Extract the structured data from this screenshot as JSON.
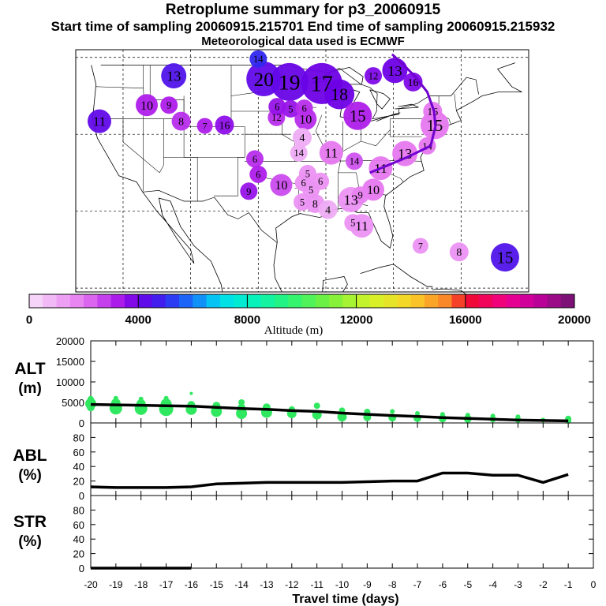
{
  "header": {
    "title": "Retroplume summary for p3_20060915",
    "sampling": "Start time of sampling 20060915.215701     End time of sampling 20060915.215932",
    "met": "Meteorological data used is ECMWF"
  },
  "colorbar": {
    "label": "Altitude (m)",
    "ticks": [
      "0",
      "4000",
      "8000",
      "12000",
      "16000",
      "20000"
    ]
  },
  "chart_data": [
    {
      "type": "scatter",
      "name": "map-plume-centroids",
      "title": "Retroplume centroid positions by day (color = altitude, size = plume extent)",
      "points": [
        {
          "label": "20",
          "lon": -99.2,
          "lat": 47.2,
          "alt": 4200
        },
        {
          "label": "19",
          "lon": -95.4,
          "lat": 46.8,
          "alt": 4100
        },
        {
          "label": "17",
          "lon": -90.6,
          "lat": 46.6,
          "alt": 4000
        },
        {
          "label": "18",
          "lon": -88.0,
          "lat": 45.2,
          "alt": 4000
        },
        {
          "label": "14",
          "lon": -100.0,
          "lat": 49.8,
          "alt": 5000
        },
        {
          "label": "13",
          "lon": -112.5,
          "lat": 47.6,
          "alt": 4500
        },
        {
          "label": "15",
          "lon": -85.3,
          "lat": 42.4,
          "alt": 3200
        },
        {
          "label": "12",
          "lon": -97.3,
          "lat": 42.2,
          "alt": 3000
        },
        {
          "label": "6",
          "lon": -97.2,
          "lat": 43.6,
          "alt": 3500
        },
        {
          "label": "5",
          "lon": -95.2,
          "lat": 43.3,
          "alt": 3500
        },
        {
          "label": "6",
          "lon": -93.2,
          "lat": 43.4,
          "alt": 3000
        },
        {
          "label": "10",
          "lon": -93.0,
          "lat": 42.0,
          "alt": 3000
        },
        {
          "label": "16",
          "lon": -105.0,
          "lat": 41.2,
          "alt": 3600
        },
        {
          "label": "7",
          "lon": -107.9,
          "lat": 41.1,
          "alt": 3200
        },
        {
          "label": "8",
          "lon": -111.4,
          "lat": 41.7,
          "alt": 3000
        },
        {
          "label": "10",
          "lon": -116.5,
          "lat": 43.8,
          "alt": 3200
        },
        {
          "label": "9",
          "lon": -113.2,
          "lat": 43.8,
          "alt": 3200
        },
        {
          "label": "11",
          "lon": -123.5,
          "lat": 41.7,
          "alt": 4200
        },
        {
          "label": "4",
          "lon": -93.5,
          "lat": 39.6,
          "alt": 1000
        },
        {
          "label": "11",
          "lon": -89.2,
          "lat": 37.6,
          "alt": 2000
        },
        {
          "label": "14",
          "lon": -85.8,
          "lat": 36.5,
          "alt": 2500
        },
        {
          "label": "14",
          "lon": -94.0,
          "lat": 37.6,
          "alt": 1000
        },
        {
          "label": "6",
          "lon": -100.5,
          "lat": 36.8,
          "alt": 3000
        },
        {
          "label": "6",
          "lon": -100.0,
          "lat": 34.8,
          "alt": 3200
        },
        {
          "label": "10",
          "lon": -96.6,
          "lat": 33.4,
          "alt": 2600
        },
        {
          "label": "9",
          "lon": -101.4,
          "lat": 32.6,
          "alt": 3500
        },
        {
          "label": "6",
          "lon": -93.3,
          "lat": 33.7,
          "alt": 1500
        },
        {
          "label": "5",
          "lon": -92.7,
          "lat": 34.9,
          "alt": 1500
        },
        {
          "label": "6",
          "lon": -90.8,
          "lat": 33.9,
          "alt": 1500
        },
        {
          "label": "5",
          "lon": -92.2,
          "lat": 32.8,
          "alt": 1500
        },
        {
          "label": "5",
          "lon": -93.5,
          "lat": 31.2,
          "alt": 1500
        },
        {
          "label": "8",
          "lon": -91.6,
          "lat": 31.0,
          "alt": 1500
        },
        {
          "label": "4",
          "lon": -89.7,
          "lat": 30.2,
          "alt": 1000
        },
        {
          "label": "13",
          "lon": -86.3,
          "lat": 31.5,
          "alt": 1500
        },
        {
          "label": "9",
          "lon": -84.9,
          "lat": 32.1,
          "alt": 1800
        },
        {
          "label": "10",
          "lon": -83.0,
          "lat": 32.8,
          "alt": 2000
        },
        {
          "label": "5",
          "lon": -86.0,
          "lat": 28.5,
          "alt": 1500
        },
        {
          "label": "11",
          "lon": -84.7,
          "lat": 28.1,
          "alt": 1500
        },
        {
          "label": "7",
          "lon": -76.0,
          "lat": 25.5,
          "alt": 1500
        },
        {
          "label": "8",
          "lon": -70.3,
          "lat": 24.7,
          "alt": 1500
        },
        {
          "label": "15",
          "lon": -63.5,
          "lat": 24.0,
          "alt": 4500
        },
        {
          "label": "16",
          "lon": -77.1,
          "lat": 46.8,
          "alt": 3800
        },
        {
          "label": "13",
          "lon": -79.8,
          "lat": 48.3,
          "alt": 4000
        },
        {
          "label": "12",
          "lon": -83.0,
          "lat": 47.6,
          "alt": 3800
        },
        {
          "label": "16",
          "lon": -74.2,
          "lat": 43.0,
          "alt": 2000
        },
        {
          "label": "15",
          "lon": -73.9,
          "lat": 41.2,
          "alt": 2000
        },
        {
          "label": "14",
          "lon": -75.0,
          "lat": 38.5,
          "alt": 2000
        },
        {
          "label": "13",
          "lon": -78.3,
          "lat": 37.5,
          "alt": 2000
        },
        {
          "label": "11",
          "lon": -81.9,
          "lat": 35.6,
          "alt": 2000
        }
      ],
      "path_color": "#7000d0",
      "path": [
        [
          -83.5,
          35.0
        ],
        [
          -78.0,
          37.0
        ],
        [
          -74.5,
          38.5
        ],
        [
          -73.8,
          41.0
        ],
        [
          -74.0,
          43.0
        ],
        [
          -75.0,
          45.5
        ],
        [
          -76.8,
          47.5
        ],
        [
          -78.7,
          49.2
        ],
        [
          -80.2,
          50.4
        ]
      ]
    },
    {
      "type": "scatter",
      "name": "alt-panel",
      "title": "ALT (m)",
      "xlim": [
        -20,
        0
      ],
      "ylim": [
        0,
        20000
      ],
      "yticks": [
        "0",
        "5000",
        "10000",
        "15000",
        "20000"
      ],
      "line_x": [
        -20,
        -19,
        -18,
        -17,
        -16,
        -15,
        -14,
        -13,
        -12,
        -11,
        -10,
        -9,
        -8,
        -7,
        -6,
        -5,
        -4,
        -3,
        -2,
        -1
      ],
      "line_y": [
        4500,
        4400,
        4300,
        4200,
        4100,
        3800,
        3500,
        3300,
        3000,
        2800,
        2400,
        2100,
        1800,
        1600,
        1300,
        1100,
        900,
        700,
        600,
        500
      ],
      "dots": [
        {
          "x": -20,
          "y": 5800,
          "s": 4
        },
        {
          "x": -20,
          "y": 4700,
          "s": 7
        },
        {
          "x": -20,
          "y": 3800,
          "s": 5
        },
        {
          "x": -19,
          "y": 6000,
          "s": 3
        },
        {
          "x": -19,
          "y": 4800,
          "s": 6
        },
        {
          "x": -19,
          "y": 3600,
          "s": 8
        },
        {
          "x": -18,
          "y": 5800,
          "s": 3
        },
        {
          "x": -18,
          "y": 4600,
          "s": 6
        },
        {
          "x": -18,
          "y": 3500,
          "s": 8
        },
        {
          "x": -17,
          "y": 6000,
          "s": 3
        },
        {
          "x": -17,
          "y": 4600,
          "s": 7
        },
        {
          "x": -17,
          "y": 3400,
          "s": 9
        },
        {
          "x": -16,
          "y": 7200,
          "s": 2
        },
        {
          "x": -16,
          "y": 4400,
          "s": 5
        },
        {
          "x": -16,
          "y": 3300,
          "s": 7
        },
        {
          "x": -15,
          "y": 4200,
          "s": 5
        },
        {
          "x": -15,
          "y": 2800,
          "s": 7
        },
        {
          "x": -14,
          "y": 5000,
          "s": 4
        },
        {
          "x": -14,
          "y": 3700,
          "s": 5
        },
        {
          "x": -14,
          "y": 2300,
          "s": 7
        },
        {
          "x": -13,
          "y": 3800,
          "s": 5
        },
        {
          "x": -13,
          "y": 2600,
          "s": 7
        },
        {
          "x": -12,
          "y": 3300,
          "s": 4
        },
        {
          "x": -12,
          "y": 2300,
          "s": 6
        },
        {
          "x": -11,
          "y": 4200,
          "s": 4
        },
        {
          "x": -11,
          "y": 2000,
          "s": 6
        },
        {
          "x": -10,
          "y": 3000,
          "s": 4
        },
        {
          "x": -10,
          "y": 1500,
          "s": 6
        },
        {
          "x": -9,
          "y": 2700,
          "s": 4
        },
        {
          "x": -9,
          "y": 1400,
          "s": 5
        },
        {
          "x": -8,
          "y": 2800,
          "s": 3
        },
        {
          "x": -8,
          "y": 1300,
          "s": 5
        },
        {
          "x": -7,
          "y": 2300,
          "s": 3
        },
        {
          "x": -7,
          "y": 1200,
          "s": 5
        },
        {
          "x": -6,
          "y": 2100,
          "s": 3
        },
        {
          "x": -6,
          "y": 1100,
          "s": 5
        },
        {
          "x": -5,
          "y": 1900,
          "s": 3
        },
        {
          "x": -5,
          "y": 1000,
          "s": 5
        },
        {
          "x": -4,
          "y": 1700,
          "s": 3
        },
        {
          "x": -4,
          "y": 900,
          "s": 4
        },
        {
          "x": -3,
          "y": 1500,
          "s": 3
        },
        {
          "x": -3,
          "y": 800,
          "s": 4
        },
        {
          "x": -2,
          "y": 700,
          "s": 3
        },
        {
          "x": -1,
          "y": 1000,
          "s": 4
        },
        {
          "x": -1,
          "y": 600,
          "s": 4
        }
      ],
      "dot_color": "#30e860"
    },
    {
      "type": "line",
      "name": "abl-panel",
      "title": "ABL (%)",
      "xlim": [
        -20,
        0
      ],
      "ylim": [
        0,
        100
      ],
      "yticks": [
        "0",
        "20",
        "40",
        "60",
        "80"
      ],
      "x": [
        -20,
        -19,
        -18,
        -17,
        -16,
        -15,
        -14,
        -13,
        -12,
        -11,
        -10,
        -9,
        -8,
        -7,
        -6,
        -5,
        -4,
        -3,
        -2,
        -1
      ],
      "y": [
        12,
        11,
        11,
        11,
        12,
        16,
        17,
        18,
        18,
        18,
        18,
        19,
        20,
        20,
        31,
        31,
        28,
        28,
        18,
        29
      ]
    },
    {
      "type": "line",
      "name": "str-panel",
      "title": "STR (%)",
      "xlim": [
        -20,
        0
      ],
      "ylim": [
        0,
        100
      ],
      "yticks": [
        "0",
        "20",
        "40",
        "60",
        "80"
      ],
      "x": [
        -20,
        -19,
        -18,
        -17,
        -16
      ],
      "y": [
        0,
        0,
        0,
        0,
        0
      ],
      "xlabel": "Travel time (days)",
      "xticks": [
        "-20",
        "-19",
        "-18",
        "-17",
        "-16",
        "-15",
        "-14",
        "-13",
        "-12",
        "-11",
        "-10",
        "-9",
        "-8",
        "-7",
        "-6",
        "-5",
        "-4",
        "-3",
        "-2",
        "-1",
        "0"
      ]
    }
  ]
}
